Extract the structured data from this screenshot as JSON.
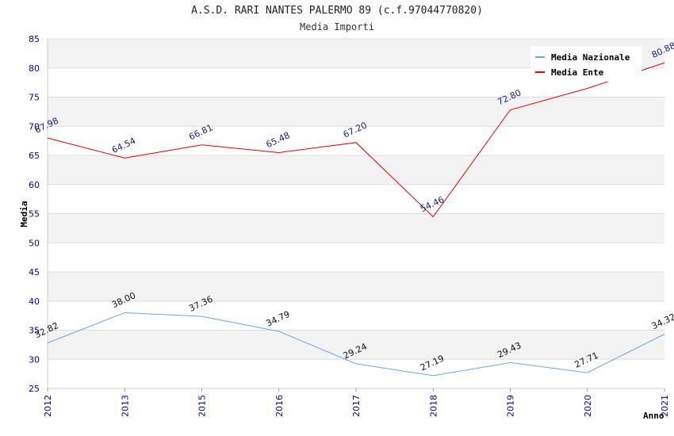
{
  "chart_data": {
    "type": "line",
    "title": "A.S.D. RARI NANTES PALERMO 89 (c.f.97044770820)",
    "subtitle": "Media Importi",
    "xlabel": "Anno",
    "ylabel": "Media",
    "ylim": [
      25,
      85
    ],
    "yticks": [
      25,
      30,
      35,
      40,
      45,
      50,
      55,
      60,
      65,
      70,
      75,
      80,
      85
    ],
    "categories": [
      "2012",
      "2013",
      "2015",
      "2016",
      "2017",
      "2018",
      "2019",
      "2020",
      "2021"
    ],
    "grid": true,
    "legend_position": "top-right",
    "series": [
      {
        "name": "Media Nazionale",
        "color": "#6aa9e0",
        "values": [
          32.82,
          38.0,
          37.36,
          34.79,
          29.24,
          27.19,
          29.43,
          27.71,
          34.32
        ],
        "labels": [
          "32.82",
          "38.00",
          "37.36",
          "34.79",
          "29.24",
          "27.19",
          "29.43",
          "27.71",
          "34.32"
        ]
      },
      {
        "name": "Media Ente",
        "color": "#ee0000",
        "values": [
          67.98,
          64.54,
          66.81,
          65.48,
          67.2,
          54.46,
          72.8,
          76.5,
          80.88
        ],
        "labels": [
          "67.98",
          "64.54",
          "66.81",
          "65.48",
          "67.20",
          "54.46",
          "72.80",
          "",
          "80.88"
        ]
      }
    ]
  }
}
